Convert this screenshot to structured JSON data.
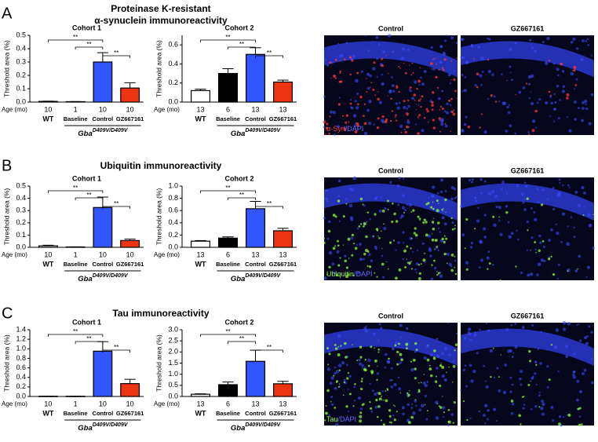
{
  "panels": [
    {
      "letter": "A",
      "title": [
        "Proteinase K-resistant",
        "α-synuclein immunoreactivity"
      ],
      "image_titles": [
        "Control",
        "GZ667161"
      ],
      "stain_label": [
        {
          "text": "α-Syn",
          "color": "#ff3a3a"
        },
        {
          "text": "/DAPI",
          "color": "#6a6aff"
        }
      ]
    },
    {
      "letter": "B",
      "title": [
        "Ubiquitin immunoreactivity"
      ],
      "image_titles": [
        "Control",
        "GZ667161"
      ],
      "stain_label": [
        {
          "text": "Ubiquitin",
          "color": "#8cff3a"
        },
        {
          "text": "/DAPI",
          "color": "#6a6aff"
        }
      ]
    },
    {
      "letter": "C",
      "title": [
        "Tau immunoreactivity"
      ],
      "image_titles": [
        "Control",
        "GZ667161"
      ],
      "stain_label": [
        {
          "text": "Tau",
          "color": "#8cff3a"
        },
        {
          "text": "/DAPI",
          "color": "#6a6aff"
        }
      ]
    }
  ],
  "chart_data": [
    {
      "type": "bar",
      "title": "Cohort 1",
      "ylabel": "Threshold area (%)",
      "age_label": "Age (mo)",
      "ages": [
        10,
        1,
        10,
        10
      ],
      "categories": [
        "WT",
        "Baseline",
        "Control",
        "GZ667161"
      ],
      "values": [
        0.005,
        0.003,
        0.3,
        0.105
      ],
      "errors": [
        0.002,
        0.001,
        0.07,
        0.04
      ],
      "colors": [
        "#ffffff",
        "#000000",
        "#3355ff",
        "#ee3311"
      ],
      "group_label": "Gba",
      "group_label_sup": "D409V/D409V",
      "significance": [
        {
          "pair": [
            0,
            2
          ],
          "label": "**"
        },
        {
          "pair": [
            1,
            2
          ],
          "label": "**"
        },
        {
          "pair": [
            2,
            3
          ],
          "label": "**"
        }
      ],
      "ylim": [
        0,
        0.5
      ],
      "yticks": [
        {
          "value": 0,
          "label": "0.0"
        },
        0.1,
        0.2,
        0.3,
        0.4,
        0.5
      ]
    },
    {
      "type": "bar",
      "title": "Cohort 2",
      "ylabel": "Threshold area (%)",
      "age_label": "Age (mo)",
      "ages": [
        13,
        6,
        13,
        13
      ],
      "categories": [
        "WT",
        "Baseline",
        "Control",
        "GZ667161"
      ],
      "values": [
        0.12,
        0.3,
        0.5,
        0.21
      ],
      "errors": [
        0.015,
        0.05,
        0.07,
        0.02
      ],
      "colors": [
        "#ffffff",
        "#000000",
        "#3355ff",
        "#ee3311"
      ],
      "group_label": "Gba",
      "group_label_sup": "D409V/D409V",
      "significance": [
        {
          "pair": [
            0,
            2
          ],
          "label": "**"
        },
        {
          "pair": [
            1,
            2
          ],
          "label": "**"
        },
        {
          "pair": [
            2,
            3
          ],
          "label": "**"
        }
      ],
      "ylim": [
        0,
        0.7
      ],
      "yticks": [
        {
          "value": 0,
          "label": "0.0"
        },
        0.2,
        0.4,
        0.6
      ]
    },
    {
      "type": "bar",
      "title": "Cohort 1",
      "ylabel": "Threshold area (%)",
      "age_label": "Age (mo)",
      "ages": [
        10,
        1,
        10,
        10
      ],
      "categories": [
        "WT",
        "Baseline",
        "Control",
        "GZ667161"
      ],
      "values": [
        0.012,
        0.003,
        0.325,
        0.055
      ],
      "errors": [
        0.005,
        0.001,
        0.085,
        0.012
      ],
      "colors": [
        "#ffffff",
        "#000000",
        "#3355ff",
        "#ee3311"
      ],
      "group_label": "Gba",
      "group_label_sup": "D409V/D409V",
      "significance": [
        {
          "pair": [
            0,
            2
          ],
          "label": "**"
        },
        {
          "pair": [
            1,
            2
          ],
          "label": "**"
        },
        {
          "pair": [
            2,
            3
          ],
          "label": "**"
        }
      ],
      "ylim": [
        0,
        0.5
      ],
      "yticks": [
        {
          "value": 0,
          "label": "0.0"
        },
        0.1,
        0.2,
        0.3,
        0.4,
        0.5
      ]
    },
    {
      "type": "bar",
      "title": "Cohort 2",
      "ylabel": "Threshold area (%)",
      "age_label": "Age (mo)",
      "ages": [
        13,
        6,
        13,
        13
      ],
      "categories": [
        "WT",
        "Baseline",
        "Control",
        "GZ667161"
      ],
      "values": [
        0.1,
        0.15,
        0.63,
        0.27
      ],
      "errors": [
        0.01,
        0.02,
        0.12,
        0.04
      ],
      "colors": [
        "#ffffff",
        "#000000",
        "#3355ff",
        "#ee3311"
      ],
      "group_label": "Gba",
      "group_label_sup": "D409V/D409V",
      "significance": [
        {
          "pair": [
            0,
            2
          ],
          "label": "**"
        },
        {
          "pair": [
            1,
            2
          ],
          "label": "**"
        },
        {
          "pair": [
            2,
            3
          ],
          "label": "**"
        }
      ],
      "ylim": [
        0,
        1.0
      ],
      "yticks": [
        {
          "value": 0,
          "label": "0.0"
        },
        0.2,
        0.4,
        0.6,
        0.8,
        {
          "value": 1,
          "label": "1.0"
        }
      ]
    },
    {
      "type": "bar",
      "title": "Cohort 1",
      "ylabel": "Threshold area (%)",
      "age_label": "Age (mo)",
      "ages": [
        10,
        1,
        10,
        10
      ],
      "categories": [
        "WT",
        "Baseline",
        "Control",
        "GZ667161"
      ],
      "values": [
        0.005,
        0.005,
        0.95,
        0.27
      ],
      "errors": [
        0.002,
        0.002,
        0.2,
        0.09
      ],
      "colors": [
        "#ffffff",
        "#000000",
        "#3355ff",
        "#ee3311"
      ],
      "group_label": "Gba",
      "group_label_sup": "D409V/D409V",
      "significance": [
        {
          "pair": [
            0,
            2
          ],
          "label": "**"
        },
        {
          "pair": [
            1,
            2
          ],
          "label": "**"
        },
        {
          "pair": [
            2,
            3
          ],
          "label": "**"
        }
      ],
      "ylim": [
        0,
        1.4
      ],
      "yticks": [
        {
          "value": 0,
          "label": "0.0"
        },
        0.2,
        0.4,
        0.6,
        0.8,
        {
          "value": 1,
          "label": "1.0"
        },
        1.2,
        1.4
      ]
    },
    {
      "type": "bar",
      "title": "Cohort 2",
      "ylabel": "Threshold area (%)",
      "age_label": "Age (mo)",
      "ages": [
        13,
        6,
        13,
        13
      ],
      "categories": [
        "WT",
        "Baseline",
        "Control",
        "GZ667161"
      ],
      "values": [
        0.1,
        0.53,
        1.58,
        0.57
      ],
      "errors": [
        0.02,
        0.12,
        0.5,
        0.11
      ],
      "colors": [
        "#ffffff",
        "#000000",
        "#3355ff",
        "#ee3311"
      ],
      "group_label": "Gba",
      "group_label_sup": "D409V/D409V",
      "significance": [
        {
          "pair": [
            0,
            2
          ],
          "label": "**"
        },
        {
          "pair": [
            1,
            2
          ],
          "label": "**"
        },
        {
          "pair": [
            2,
            3
          ],
          "label": "**"
        }
      ],
      "ylim": [
        0,
        3.0
      ],
      "yticks": [
        {
          "value": 0,
          "label": "0.0"
        },
        {
          "value": 0.5,
          "label": "0.5"
        },
        {
          "value": 1,
          "label": "1.0"
        },
        {
          "value": 1.5,
          "label": "1.5"
        },
        {
          "value": 2,
          "label": "2.0"
        },
        {
          "value": 2.5,
          "label": "2.5"
        },
        {
          "value": 3,
          "label": "3.0"
        }
      ]
    }
  ]
}
